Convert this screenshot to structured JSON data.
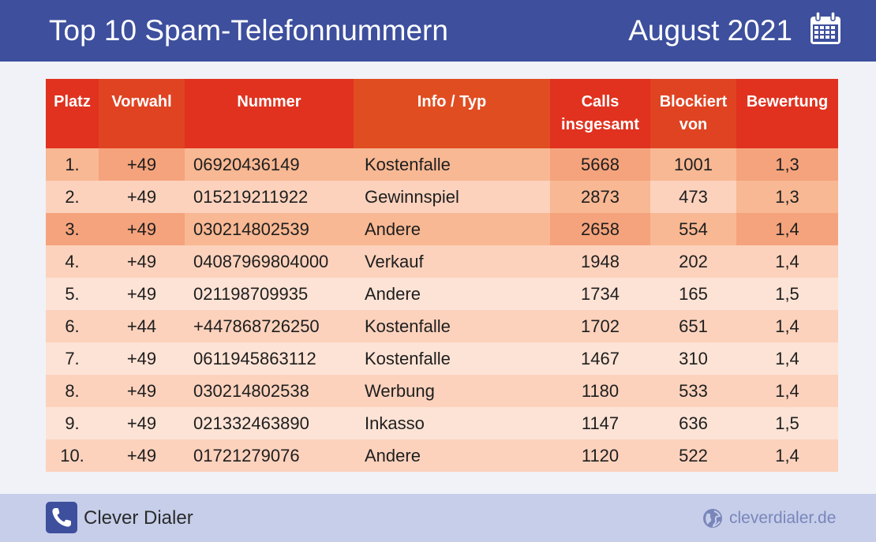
{
  "header": {
    "title": "Top 10 Spam-Telefonnummern",
    "date": "August 2021"
  },
  "footer": {
    "brand": "Clever Dialer",
    "website": "cleverdialer.de"
  },
  "colors": {
    "header_bg": "#3d4f9d",
    "footer_bg": "#c6ceea",
    "heat_levels": [
      "#f5a37c",
      "#f8b893",
      "#fcd2bd",
      "#fde3d5"
    ]
  },
  "chart_data": {
    "type": "table",
    "title": "Top 10 Spam-Telefonnummern",
    "subtitle": "August 2021",
    "columns": [
      [
        "Platz"
      ],
      [
        "Vorwahl"
      ],
      [
        "Nummer"
      ],
      [
        "Info / Typ"
      ],
      [
        "Calls",
        "insgesamt"
      ],
      [
        "Blockiert",
        "von"
      ],
      [
        "Bewertung"
      ]
    ],
    "rows": [
      [
        "1.",
        "+49",
        "06920436149",
        "Kostenfalle",
        "5668",
        "1001",
        "1,3"
      ],
      [
        "2.",
        "+49",
        "015219211922",
        "Gewinnspiel",
        "2873",
        "473",
        "1,3"
      ],
      [
        "3.",
        "+49",
        "030214802539",
        "Andere",
        "2658",
        "554",
        "1,4"
      ],
      [
        "4.",
        "+49",
        "04087969804000",
        "Verkauf",
        "1948",
        "202",
        "1,4"
      ],
      [
        "5.",
        "+49",
        "021198709935",
        "Andere",
        "1734",
        "165",
        "1,5"
      ],
      [
        "6.",
        "+44",
        "+447868726250",
        "Kostenfalle",
        "1702",
        "651",
        "1,4"
      ],
      [
        "7.",
        "+49",
        "0611945863112",
        "Kostenfalle",
        "1467",
        "310",
        "1,4"
      ],
      [
        "8.",
        "+49",
        "030214802538",
        "Werbung",
        "1180",
        "533",
        "1,4"
      ],
      [
        "9.",
        "+49",
        "021332463890",
        "Inkasso",
        "1147",
        "636",
        "1,5"
      ],
      [
        "10.",
        "+49",
        "01721279076",
        "Andere",
        "1120",
        "522",
        "1,4"
      ]
    ],
    "cell_shading": [
      [
        1,
        0,
        1,
        1,
        0,
        1,
        0
      ],
      [
        2,
        2,
        2,
        2,
        1,
        2,
        1
      ],
      [
        0,
        0,
        1,
        1,
        0,
        1,
        0
      ],
      [
        2,
        2,
        2,
        2,
        2,
        2,
        2
      ],
      [
        3,
        3,
        3,
        3,
        3,
        3,
        3
      ],
      [
        2,
        2,
        2,
        2,
        2,
        2,
        2
      ],
      [
        3,
        3,
        3,
        3,
        3,
        3,
        3
      ],
      [
        2,
        2,
        2,
        2,
        2,
        2,
        2
      ],
      [
        3,
        3,
        3,
        3,
        3,
        3,
        3
      ],
      [
        2,
        2,
        2,
        2,
        2,
        2,
        2
      ]
    ],
    "header_colors": [
      "#e0321f",
      "#e04322",
      "#e0321f",
      "#e04d21",
      "#e0321f",
      "#e04322",
      "#e0321f"
    ]
  }
}
